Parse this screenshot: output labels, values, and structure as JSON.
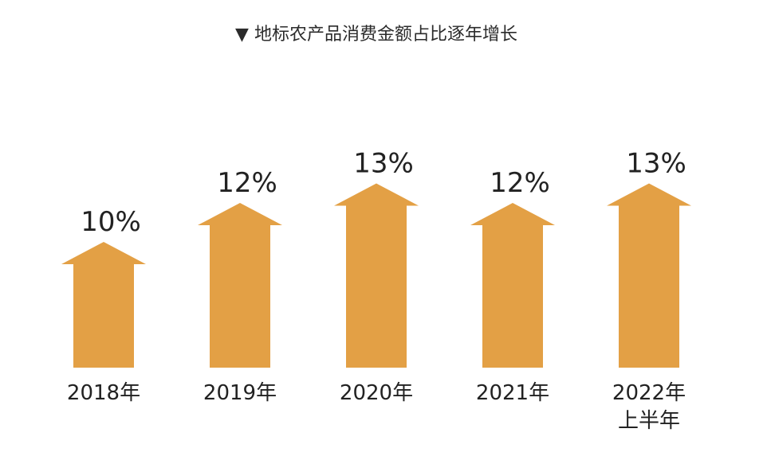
{
  "chart_data": {
    "type": "bar",
    "title": "▼ 地标农产品消费金额占比逐年增长",
    "categories": [
      "2018年",
      "2019年",
      "2020年",
      "2021年",
      "2022年\n上半年"
    ],
    "values": [
      10,
      12,
      13,
      12,
      13
    ],
    "data_labels": [
      "10%",
      "12%",
      "13%",
      "12%",
      "13%"
    ],
    "unit": "%",
    "mark": "up-arrow",
    "color": "#E3A045",
    "grid": false,
    "legend": "none"
  }
}
